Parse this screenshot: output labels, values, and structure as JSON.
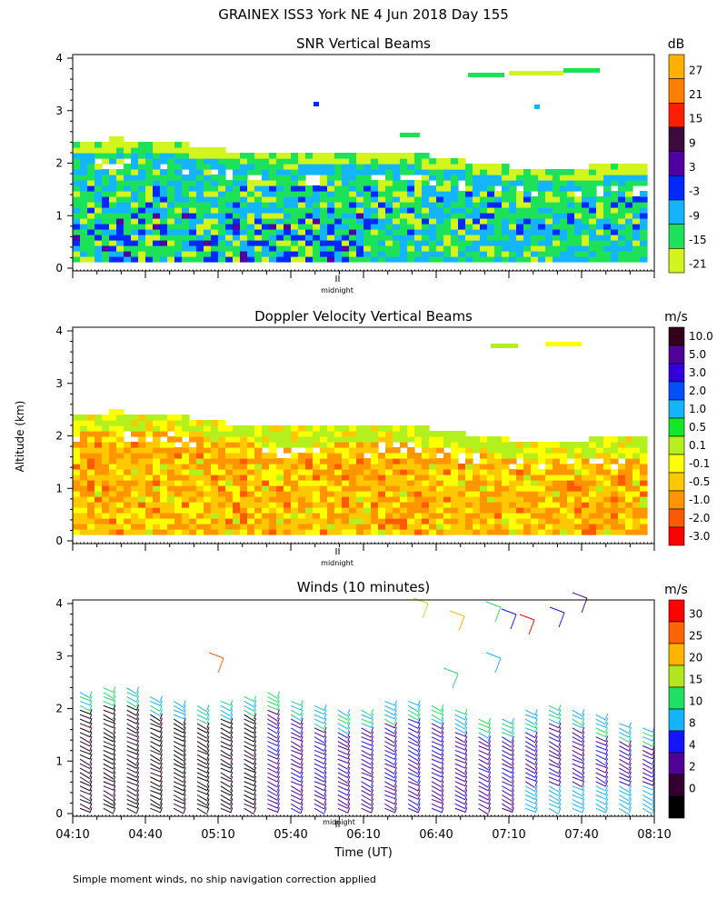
{
  "page": {
    "title": "GRAINEX ISS3 York NE   4 Jun 2018 Day 155",
    "y_axis_label": "Altitude (km)",
    "x_axis_label": "Time (UT)",
    "footnote": "Simple moment winds, no ship navigation correction applied",
    "midnight_label": "midnight"
  },
  "chart_data": [
    {
      "type": "heatmap",
      "title": "SNR Vertical Beams",
      "ylim": [
        0,
        4
      ],
      "y_ticks": [
        "0",
        "1",
        "2",
        "3",
        "4"
      ],
      "colorbar": {
        "unit": "dB",
        "labels": [
          "27",
          "21",
          "15",
          "9",
          "3",
          "-3",
          "-9",
          "-15",
          "-21"
        ],
        "colors": [
          "#ffb000",
          "#ff7f00",
          "#ff1e00",
          "#3c0a3c",
          "#5000a0",
          "#0028ff",
          "#14b4ff",
          "#1ee15a",
          "#d2f51e"
        ]
      },
      "midnight_marker": true
    },
    {
      "type": "heatmap",
      "title": "Doppler Velocity Vertical Beams",
      "ylim": [
        0,
        4
      ],
      "y_ticks": [
        "0",
        "1",
        "2",
        "3",
        "4"
      ],
      "colorbar": {
        "unit": "m/s",
        "labels": [
          "10.0",
          "5.0",
          "3.0",
          "2.0",
          "1.0",
          "0.5",
          "0.1",
          "-0.1",
          "-0.5",
          "-1.0",
          "-2.0",
          "-3.0"
        ],
        "colors": [
          "#32001e",
          "#500096",
          "#3200dc",
          "#0050ff",
          "#14b4ff",
          "#14e628",
          "#b4f01e",
          "#ffff00",
          "#ffc800",
          "#ff9600",
          "#ff5a00",
          "#ff0000"
        ]
      },
      "midnight_marker": true
    },
    {
      "type": "scatter",
      "title": "Winds (10 minutes)",
      "ylim": [
        0,
        4
      ],
      "y_ticks": [
        "0",
        "1",
        "2",
        "3",
        "4"
      ],
      "x_ticks": [
        "04:10",
        "04:40",
        "05:10",
        "05:40",
        "06:10",
        "06:40",
        "07:10",
        "07:40",
        "08:10"
      ],
      "colorbar": {
        "unit": "m/s",
        "labels": [
          "30",
          "25",
          "20",
          "15",
          "10",
          "8",
          "4",
          "2",
          "0"
        ],
        "colors": [
          "#ff0000",
          "#ff6400",
          "#ffb400",
          "#b4e61e",
          "#1ee164",
          "#14b4ff",
          "#1414ff",
          "#500096",
          "#320032",
          "#000000"
        ]
      },
      "midnight_marker": true
    }
  ]
}
